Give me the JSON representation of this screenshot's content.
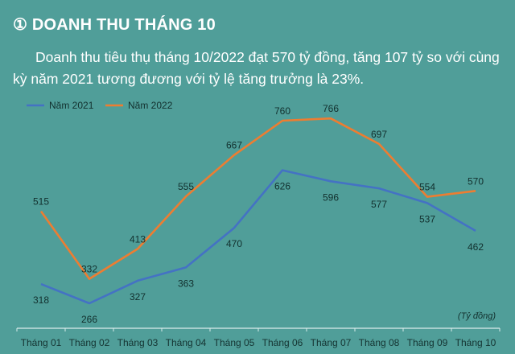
{
  "header": {
    "title": "① DOANH THU THÁNG 10",
    "description": "Doanh thu tiêu thụ tháng 10/2022 đạt 570 tỷ đồng, tăng 107 tỷ so với cùng kỳ năm 2021 tương đương với tỷ lệ tăng trưởng là 23%."
  },
  "colors": {
    "background": "#509e99",
    "series_2021": "#4472c4",
    "series_2022": "#ed7d31"
  },
  "chart_data": {
    "type": "line",
    "title": "",
    "xlabel": "",
    "ylabel": "",
    "unit_label": "(Tỷ đồng)",
    "categories": [
      "Tháng 01",
      "Tháng 02",
      "Tháng 03",
      "Tháng 04",
      "Tháng 05",
      "Tháng 06",
      "Tháng 07",
      "Tháng 08",
      "Tháng 09",
      "Tháng 10"
    ],
    "series": [
      {
        "name": "Năm 2021",
        "color": "#4472c4",
        "values": [
          318,
          266,
          327,
          363,
          470,
          626,
          596,
          577,
          537,
          462
        ]
      },
      {
        "name": "Năm 2022",
        "color": "#ed7d31",
        "values": [
          515,
          332,
          413,
          555,
          667,
          760,
          766,
          697,
          554,
          570
        ]
      }
    ],
    "grid": false,
    "legend_position": "top-left",
    "data_labels": true
  }
}
